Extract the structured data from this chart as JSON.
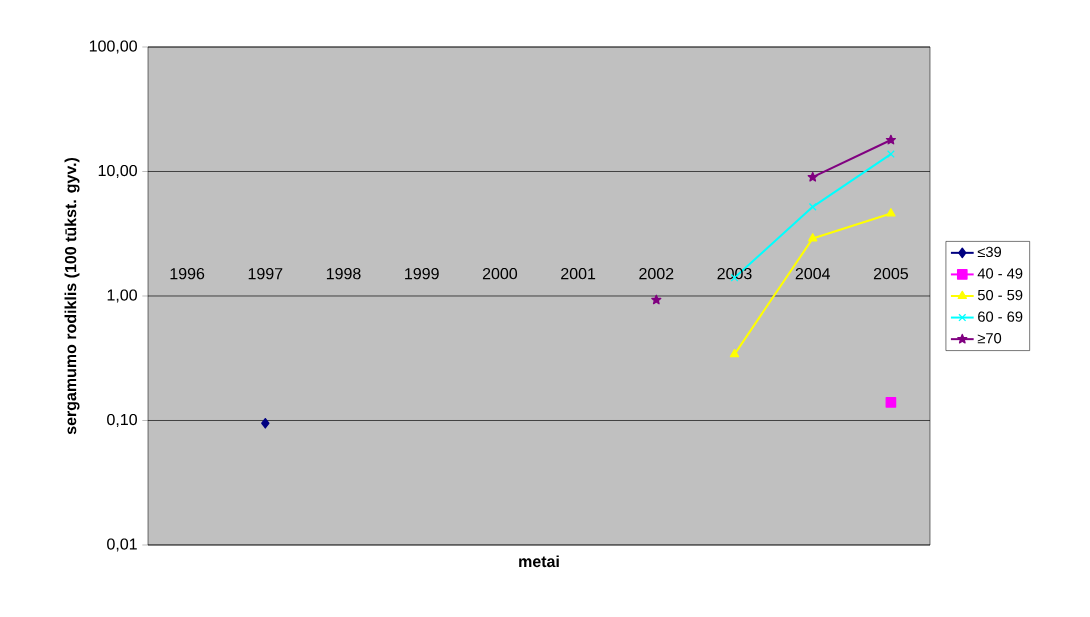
{
  "chart_data": {
    "type": "line",
    "xlabel": "metai",
    "ylabel": "sergamumo rodiklis (100 tūkst. gyv.)",
    "categories": [
      "1996",
      "1997",
      "1998",
      "1999",
      "2000",
      "2001",
      "2002",
      "2003",
      "2004",
      "2005"
    ],
    "series": [
      {
        "name": "≤39",
        "color": "#000080",
        "marker": "diamond",
        "values": [
          null,
          0.095,
          null,
          null,
          null,
          null,
          null,
          null,
          null,
          null
        ]
      },
      {
        "name": "40 - 49",
        "color": "#ff00ff",
        "marker": "square",
        "values": [
          null,
          null,
          null,
          null,
          null,
          null,
          null,
          null,
          null,
          0.14
        ]
      },
      {
        "name": "50 - 59",
        "color": "#ffff00",
        "marker": "triangle",
        "values": [
          null,
          null,
          null,
          null,
          null,
          null,
          null,
          0.34,
          2.9,
          4.6
        ]
      },
      {
        "name": "60 - 69",
        "color": "#00ffff",
        "marker": "cross",
        "values": [
          null,
          null,
          null,
          null,
          null,
          null,
          null,
          1.4,
          5.2,
          13.8
        ]
      },
      {
        "name": "≥70",
        "color": "#800080",
        "marker": "star",
        "values": [
          null,
          null,
          null,
          null,
          null,
          null,
          0.93,
          null,
          9.0,
          17.9
        ]
      }
    ],
    "log": "y",
    "ylim": [
      0.01,
      100
    ],
    "yticks": [
      {
        "value": 0.01,
        "label": "0,01"
      },
      {
        "value": 0.1,
        "label": "0,10"
      },
      {
        "value": 1,
        "label": "1,00"
      },
      {
        "value": 10,
        "label": "10,00"
      },
      {
        "value": 100,
        "label": "100,00"
      }
    ],
    "grid": "y",
    "legend": "right",
    "line_style": "solid"
  }
}
